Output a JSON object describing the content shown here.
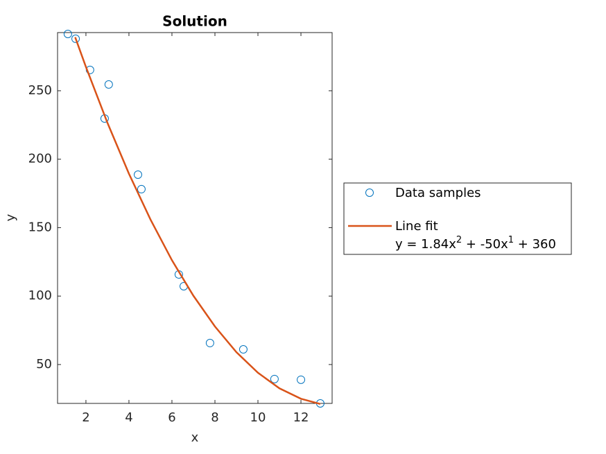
{
  "chart_data": {
    "type": "scatter_fit",
    "title": "Solution",
    "xlabel": "x",
    "ylabel": "y",
    "xlim": [
      0.68,
      13.45
    ],
    "ylim": [
      21.6,
      292.5
    ],
    "xticks": [
      2,
      4,
      6,
      8,
      10,
      12
    ],
    "yticks": [
      50,
      100,
      150,
      200,
      250
    ],
    "series": [
      {
        "name": "Data samples",
        "color": "#0072BD",
        "marker": "circle",
        "x": [
          1.16,
          1.52,
          2.19,
          3.06,
          2.87,
          4.42,
          4.58,
          6.32,
          6.55,
          7.77,
          9.32,
          10.77,
          12.0,
          12.9
        ],
        "values": [
          291.5,
          288,
          265.2,
          254.6,
          229.7,
          188.7,
          178.1,
          115.8,
          107.2,
          65.7,
          61.1,
          39.4,
          38.9,
          21.6
        ]
      },
      {
        "name": "Line fit",
        "color": "#D95319",
        "marker": "line",
        "equation": [
          "y = 1.84x",
          "2",
          " + -50x",
          "1",
          " + 360"
        ],
        "x": [
          1.5,
          2,
          3,
          4,
          5,
          6,
          7,
          8,
          9,
          10,
          11,
          12,
          12.9
        ],
        "values": [
          289.1,
          267.4,
          226.6,
          189.4,
          156,
          126.2,
          100.2,
          77.8,
          59.0,
          44,
          32.6,
          25.0,
          21.2
        ]
      }
    ]
  }
}
